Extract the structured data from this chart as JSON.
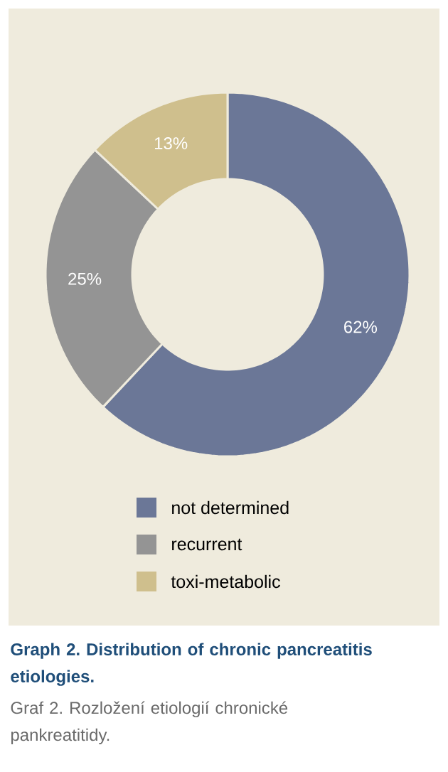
{
  "chart_data": {
    "type": "donut",
    "title": "Graph 2. Distribution of chronic pancreatitis etiologies.",
    "subtitle": "Graf 2. Rozložení etiologií chronické pankreatitidy.",
    "categories": [
      "not determined",
      "recurrent",
      "toxi-metabolic"
    ],
    "values": [
      62,
      25,
      13
    ],
    "value_labels": [
      "62%",
      "25%",
      "13%"
    ],
    "colors": [
      "#6b7797",
      "#949494",
      "#cfbf8d"
    ],
    "legend": "bottom"
  }
}
